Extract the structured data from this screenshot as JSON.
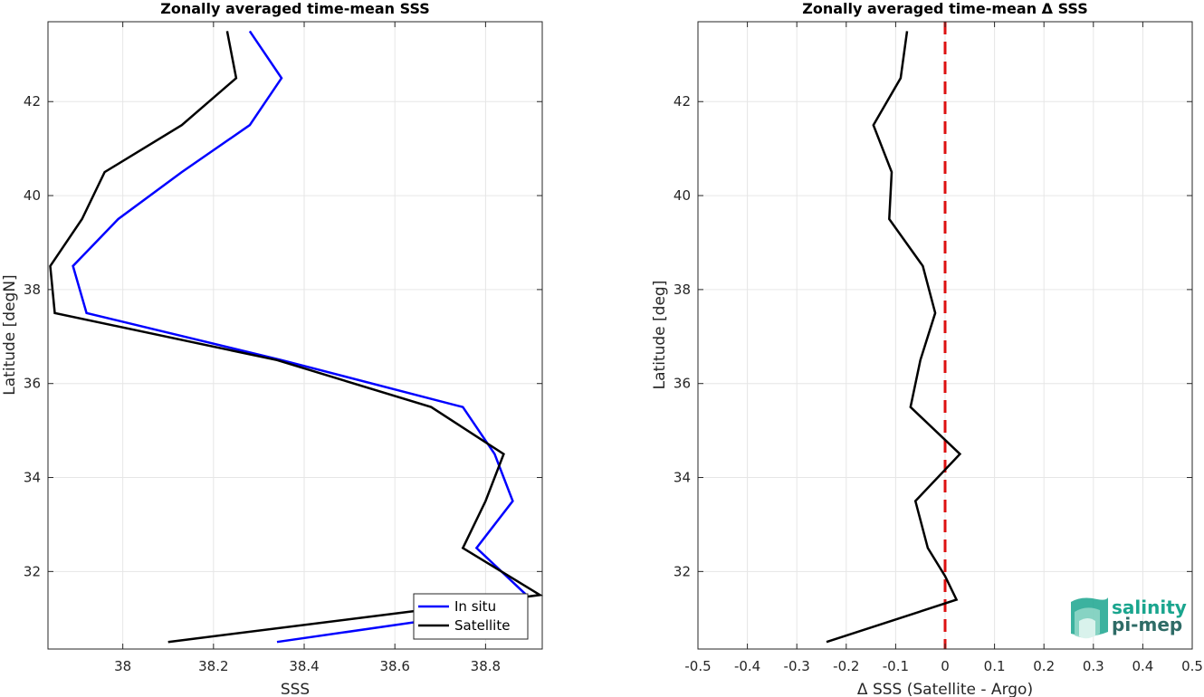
{
  "colors": {
    "insitu": "#0000ff",
    "satellite": "#000000",
    "zero_line": "#dd1111",
    "logo_teal": "#1aa58e",
    "logo_dark": "#2e6b66"
  },
  "logo": {
    "line1": "salinity",
    "line2": "pi-mep",
    "icon": "salinity-waves-icon"
  },
  "chart_data": [
    {
      "type": "line",
      "title": "Zonally averaged time-mean SSS",
      "xlabel": "SSS",
      "ylabel": "Latitude [degN]",
      "xlim": [
        37.835,
        38.925
      ],
      "ylim": [
        30.35,
        43.7
      ],
      "xticks": [
        38,
        38.2,
        38.4,
        38.6,
        38.8
      ],
      "xtick_labels": [
        "38",
        "38.2",
        "38.4",
        "38.6",
        "38.8"
      ],
      "yticks": [
        32,
        34,
        36,
        38,
        40,
        42
      ],
      "ytick_labels": [
        "32",
        "34",
        "36",
        "38",
        "40",
        "42"
      ],
      "grid": true,
      "legend": "bottom-right",
      "series": [
        {
          "name": "In situ",
          "color_key": "insitu",
          "x": [
            38.34,
            38.7,
            38.89,
            38.78,
            38.86,
            38.82,
            38.75,
            38.35,
            37.92,
            37.89,
            37.99,
            38.13,
            38.28,
            38.35,
            38.28
          ],
          "y": [
            30.5,
            31.0,
            31.5,
            32.5,
            33.5,
            34.5,
            35.5,
            36.5,
            37.5,
            38.5,
            39.5,
            40.5,
            41.5,
            42.5,
            43.5
          ]
        },
        {
          "name": "Satellite",
          "color_key": "satellite",
          "x": [
            38.1,
            38.72,
            38.92,
            38.75,
            38.8,
            38.84,
            38.68,
            38.34,
            37.85,
            37.84,
            37.91,
            37.96,
            38.13,
            38.25,
            38.23
          ],
          "y": [
            30.5,
            31.25,
            31.5,
            32.5,
            33.5,
            34.5,
            35.5,
            36.5,
            37.5,
            38.5,
            39.5,
            40.5,
            41.5,
            42.5,
            43.5
          ]
        }
      ]
    },
    {
      "type": "line",
      "title": "Zonally averaged time-mean Δ SSS",
      "xlabel": "Δ SSS (Satellite - Argo)",
      "ylabel": "Latitude [deg]",
      "xlim": [
        -0.5,
        0.5
      ],
      "ylim": [
        30.35,
        43.7
      ],
      "xticks": [
        -0.5,
        -0.4,
        -0.3,
        -0.2,
        -0.1,
        0,
        0.1,
        0.2,
        0.3,
        0.4,
        0.5
      ],
      "xtick_labels": [
        "-0.5",
        "-0.4",
        "-0.3",
        "-0.2",
        "-0.1",
        "0",
        "0.1",
        "0.2",
        "0.3",
        "0.4",
        "0.5"
      ],
      "yticks": [
        32,
        34,
        36,
        38,
        40,
        42
      ],
      "ytick_labels": [
        "32",
        "34",
        "36",
        "38",
        "40",
        "42"
      ],
      "grid": true,
      "reference_line_x": 0,
      "series": [
        {
          "color_key": "satellite",
          "x": [
            -0.24,
            0.023,
            0.0,
            -0.035,
            -0.06,
            0.03,
            -0.07,
            -0.05,
            -0.02,
            -0.045,
            -0.113,
            -0.108,
            -0.145,
            -0.09,
            -0.077
          ],
          "y": [
            30.5,
            31.4,
            31.9,
            32.5,
            33.5,
            34.5,
            35.5,
            36.5,
            37.5,
            38.5,
            39.5,
            40.5,
            41.5,
            42.5,
            43.5
          ]
        }
      ]
    }
  ]
}
